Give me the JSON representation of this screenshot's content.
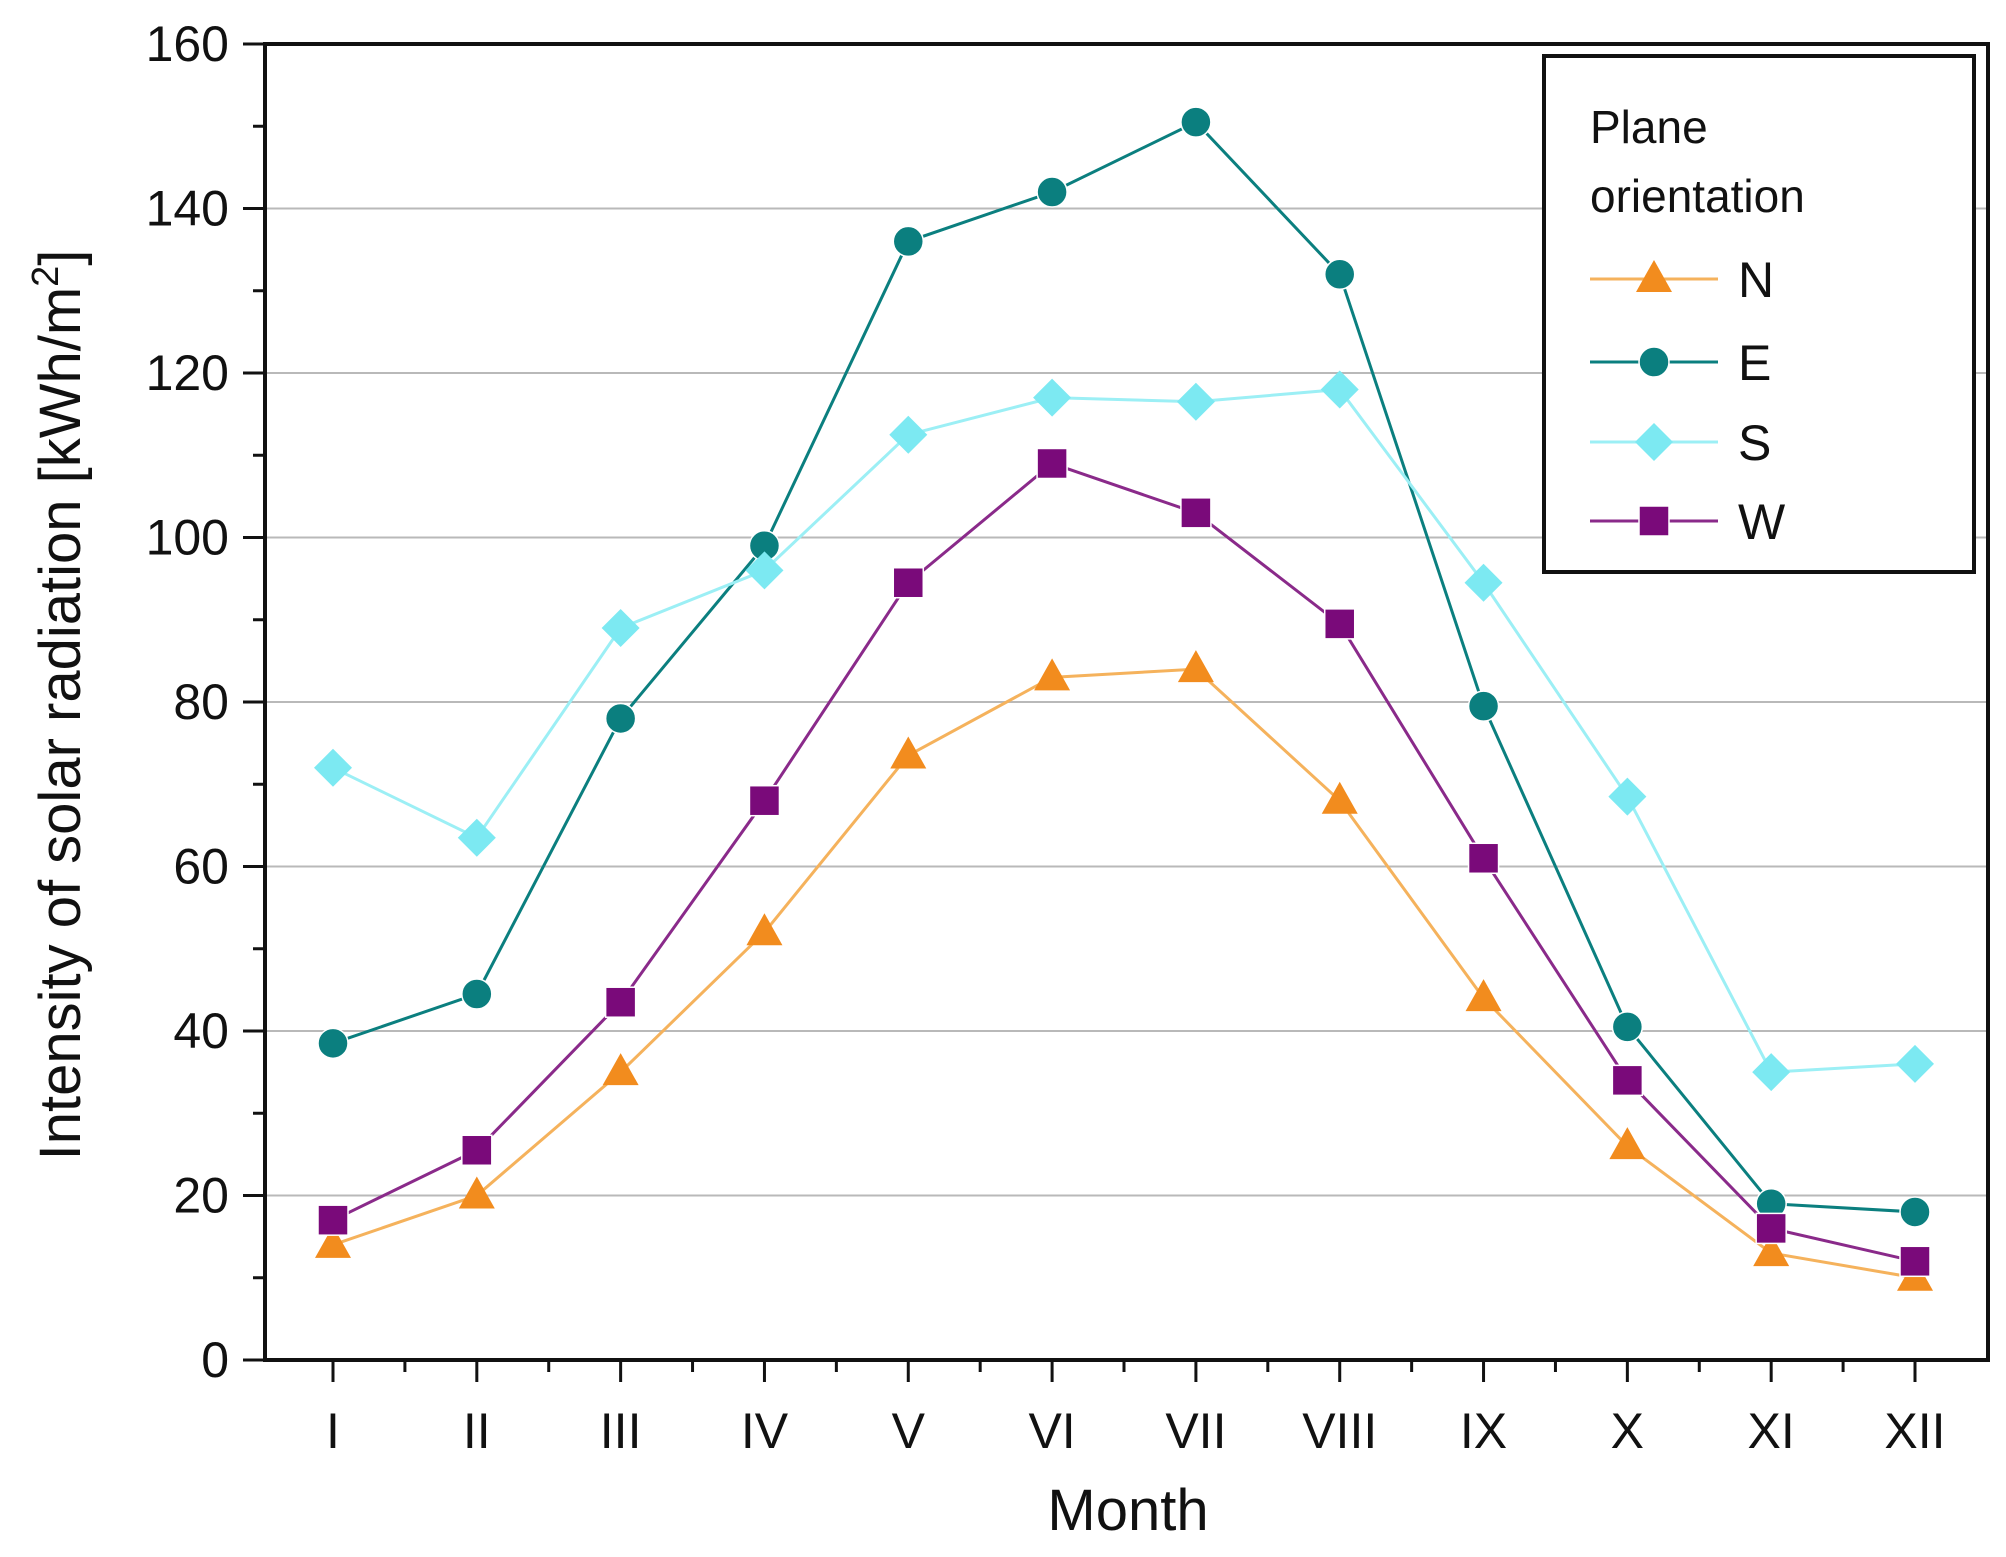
{
  "chart_data": {
    "type": "line",
    "xlabel": "Month",
    "ylabel": "Intensity of solar radiation [kWh/m",
    "ylabel_superscript": "2",
    "ylabel_suffix": "]",
    "categories": [
      "I",
      "II",
      "III",
      "IV",
      "V",
      "VI",
      "VII",
      "VIII",
      "IX",
      "X",
      "XI",
      "XII"
    ],
    "ylim": [
      0,
      160
    ],
    "yticks": [
      "0",
      "20",
      "40",
      "60",
      "80",
      "100",
      "120",
      "140",
      "160"
    ],
    "ytick_values": [
      0,
      20,
      40,
      60,
      80,
      100,
      120,
      140,
      160
    ],
    "grid": "horizontal",
    "legend": {
      "title_line1": "Plane",
      "title_line2": "orientation",
      "placement": "top-right"
    },
    "series": [
      {
        "name": "N",
        "marker": "triangle",
        "color": "#F28C1E",
        "line_color": "#F5B25C",
        "values": [
          14,
          20,
          35,
          52,
          73.5,
          83,
          84,
          68,
          44,
          26,
          13,
          10
        ]
      },
      {
        "name": "E",
        "marker": "circle",
        "color": "#0B7F7F",
        "line_color": "#0B7F7F",
        "values": [
          38.5,
          44.5,
          78,
          99,
          136,
          142,
          150.5,
          132,
          79.5,
          40.5,
          19,
          18
        ]
      },
      {
        "name": "S",
        "marker": "diamond",
        "color": "#7CE9F2",
        "line_color": "#9CEFF5",
        "values": [
          72,
          63.5,
          89,
          96,
          112.5,
          117,
          116.5,
          118,
          94.5,
          68.5,
          35,
          36
        ]
      },
      {
        "name": "W",
        "marker": "square",
        "color": "#7A0A7A",
        "line_color": "#8A2A8A",
        "values": [
          17,
          25.5,
          43.5,
          68,
          94.5,
          109,
          103,
          89.5,
          61,
          34,
          16,
          12
        ]
      }
    ]
  }
}
